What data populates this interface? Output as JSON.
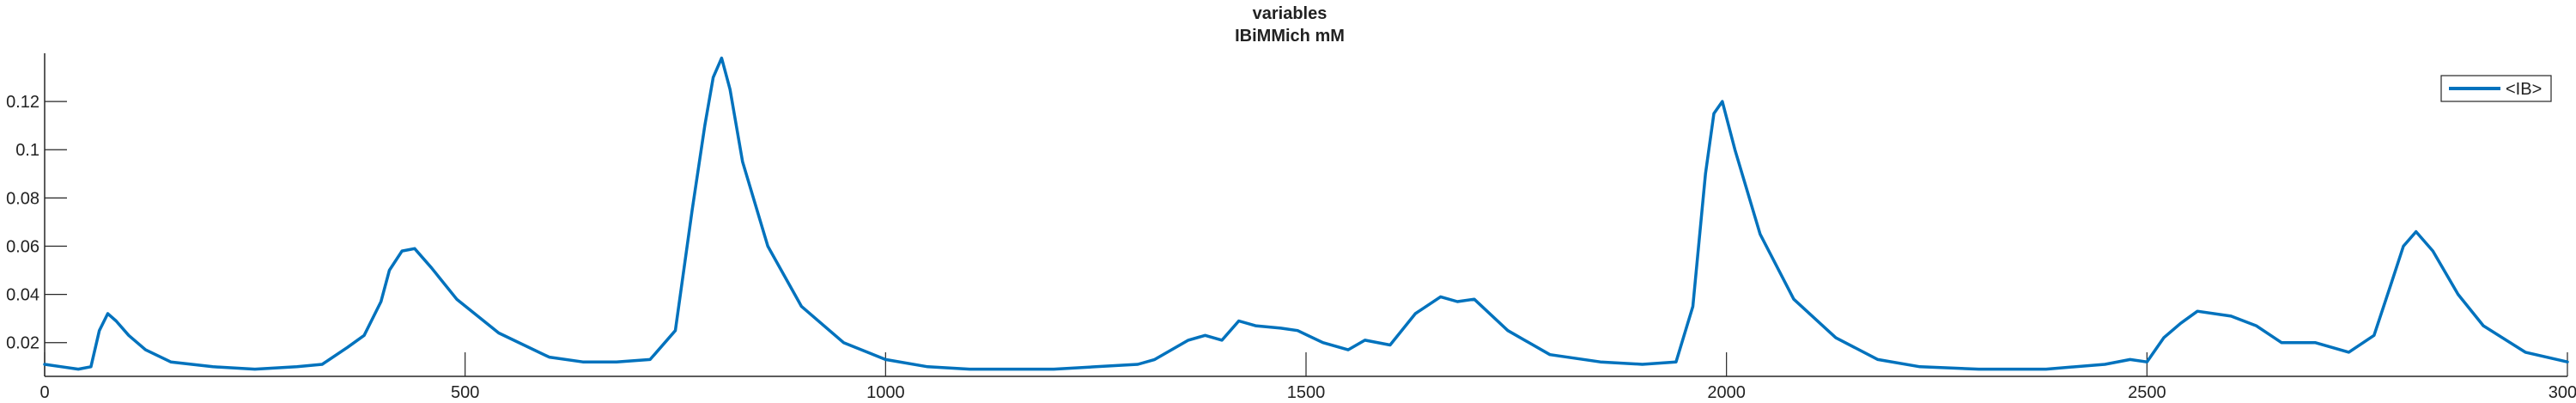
{
  "chart_data": {
    "type": "line",
    "title": "variables",
    "subtitle": "IBiMMich mM",
    "xlabel": "",
    "ylabel": "",
    "xlim": [
      0,
      3000
    ],
    "ylim": [
      0.006,
      0.14
    ],
    "x_ticks": [
      0,
      500,
      1000,
      1500,
      2000,
      2500,
      3000
    ],
    "x_tick_labels": [
      "0",
      "500",
      "1000",
      "1500",
      "2000",
      "2500",
      "3000"
    ],
    "y_ticks": [
      0.02,
      0.04,
      0.06,
      0.08,
      0.1,
      0.12
    ],
    "y_tick_labels": [
      "0.02",
      "0.04",
      "0.06",
      "0.08",
      "0.1",
      "0.12"
    ],
    "grid": false,
    "legend": {
      "position": "top-right",
      "entries": [
        "<IB>"
      ]
    },
    "series": [
      {
        "name": "<IB>",
        "color": "#0072BD",
        "x": [
          0,
          20,
          40,
          55,
          65,
          75,
          85,
          100,
          120,
          150,
          200,
          250,
          300,
          330,
          360,
          380,
          400,
          410,
          425,
          440,
          460,
          490,
          540,
          600,
          640,
          680,
          720,
          750,
          770,
          785,
          795,
          805,
          815,
          830,
          860,
          900,
          950,
          1000,
          1050,
          1100,
          1150,
          1200,
          1250,
          1300,
          1320,
          1360,
          1380,
          1400,
          1420,
          1440,
          1470,
          1490,
          1520,
          1550,
          1570,
          1600,
          1630,
          1660,
          1680,
          1700,
          1740,
          1790,
          1850,
          1900,
          1940,
          1960,
          1975,
          1985,
          1995,
          2010,
          2040,
          2080,
          2130,
          2180,
          2230,
          2300,
          2380,
          2450,
          2480,
          2500,
          2520,
          2540,
          2560,
          2600,
          2630,
          2660,
          2700,
          2740,
          2770,
          2790,
          2805,
          2820,
          2840,
          2870,
          2900,
          2950,
          3000
        ],
        "values": [
          0.011,
          0.01,
          0.009,
          0.01,
          0.025,
          0.032,
          0.029,
          0.023,
          0.017,
          0.012,
          0.01,
          0.009,
          0.01,
          0.011,
          0.018,
          0.023,
          0.037,
          0.05,
          0.058,
          0.059,
          0.051,
          0.038,
          0.024,
          0.014,
          0.012,
          0.012,
          0.013,
          0.025,
          0.075,
          0.11,
          0.13,
          0.138,
          0.125,
          0.095,
          0.06,
          0.035,
          0.02,
          0.013,
          0.01,
          0.009,
          0.009,
          0.009,
          0.01,
          0.011,
          0.013,
          0.021,
          0.023,
          0.021,
          0.029,
          0.027,
          0.026,
          0.025,
          0.02,
          0.017,
          0.021,
          0.019,
          0.032,
          0.039,
          0.037,
          0.038,
          0.025,
          0.015,
          0.012,
          0.011,
          0.012,
          0.035,
          0.09,
          0.115,
          0.12,
          0.1,
          0.065,
          0.038,
          0.022,
          0.013,
          0.01,
          0.009,
          0.009,
          0.011,
          0.013,
          0.012,
          0.022,
          0.028,
          0.033,
          0.031,
          0.027,
          0.02,
          0.02,
          0.016,
          0.023,
          0.044,
          0.06,
          0.066,
          0.058,
          0.04,
          0.027,
          0.016,
          0.012
        ]
      }
    ]
  }
}
